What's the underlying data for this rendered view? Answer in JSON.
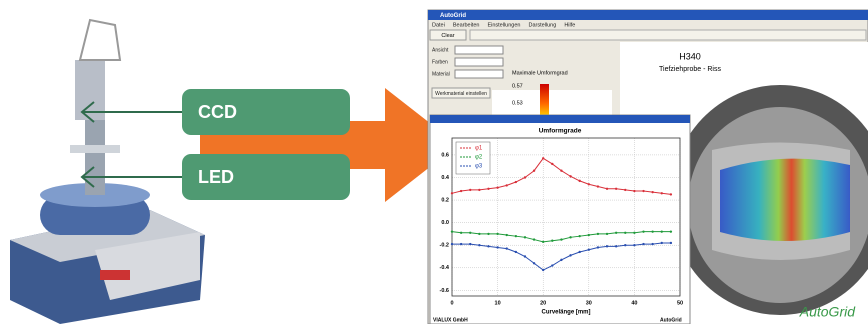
{
  "labels": {
    "ccd": "CCD",
    "led": "LED"
  },
  "window": {
    "title": "AutoGrid",
    "menu": [
      "Datei",
      "Bearbeiten",
      "Einstellungen",
      "Darstellung",
      "Hilfe"
    ],
    "button": "Clear",
    "panel": {
      "fields": [
        "Ansicht",
        "Farben",
        "Material"
      ],
      "action": "Werkmaterial einstellen"
    },
    "scale": {
      "title": "Maximale Umformgrad",
      "values": [
        "0.57",
        "0.53"
      ]
    },
    "image": {
      "heading": "H340",
      "subheading": "Tiefziehprobe - Riss",
      "brand": "AutoGrid"
    },
    "footer": [
      "VIALUX GmbH",
      "AutoGrid"
    ]
  },
  "chart_data": {
    "type": "line",
    "title": "Umformgrade",
    "xlabel": "Curvelänge [mm]",
    "x": [
      0,
      2,
      4,
      6,
      8,
      10,
      12,
      14,
      16,
      18,
      20,
      22,
      24,
      26,
      28,
      30,
      32,
      34,
      36,
      38,
      40,
      42,
      44,
      46,
      48
    ],
    "series": [
      {
        "name": "φ1",
        "color": "#d9303a",
        "values": [
          0.26,
          0.28,
          0.29,
          0.29,
          0.3,
          0.31,
          0.33,
          0.36,
          0.4,
          0.46,
          0.57,
          0.52,
          0.46,
          0.41,
          0.37,
          0.34,
          0.32,
          0.3,
          0.3,
          0.29,
          0.28,
          0.28,
          0.27,
          0.26,
          0.25
        ]
      },
      {
        "name": "φ2",
        "color": "#1f9a3a",
        "values": [
          -0.08,
          -0.09,
          -0.09,
          -0.1,
          -0.1,
          -0.1,
          -0.11,
          -0.12,
          -0.13,
          -0.15,
          -0.17,
          -0.16,
          -0.15,
          -0.13,
          -0.12,
          -0.11,
          -0.1,
          -0.1,
          -0.09,
          -0.09,
          -0.09,
          -0.08,
          -0.08,
          -0.08,
          -0.08
        ]
      },
      {
        "name": "φ3",
        "color": "#2a4fb0",
        "values": [
          -0.19,
          -0.19,
          -0.19,
          -0.2,
          -0.21,
          -0.22,
          -0.23,
          -0.26,
          -0.3,
          -0.36,
          -0.42,
          -0.38,
          -0.33,
          -0.29,
          -0.26,
          -0.24,
          -0.22,
          -0.21,
          -0.21,
          -0.2,
          -0.2,
          -0.19,
          -0.19,
          -0.18,
          -0.18
        ]
      }
    ],
    "xlim": [
      0,
      50
    ],
    "xticks": [
      0,
      10,
      20,
      30,
      40,
      50
    ],
    "ylim": [
      -0.65,
      0.75
    ],
    "yticks": [
      -0.6,
      -0.4,
      -0.2,
      {
        "value": 0,
        "label": "0.0"
      },
      0.2,
      0.4,
      0.6
    ],
    "grid": true
  }
}
